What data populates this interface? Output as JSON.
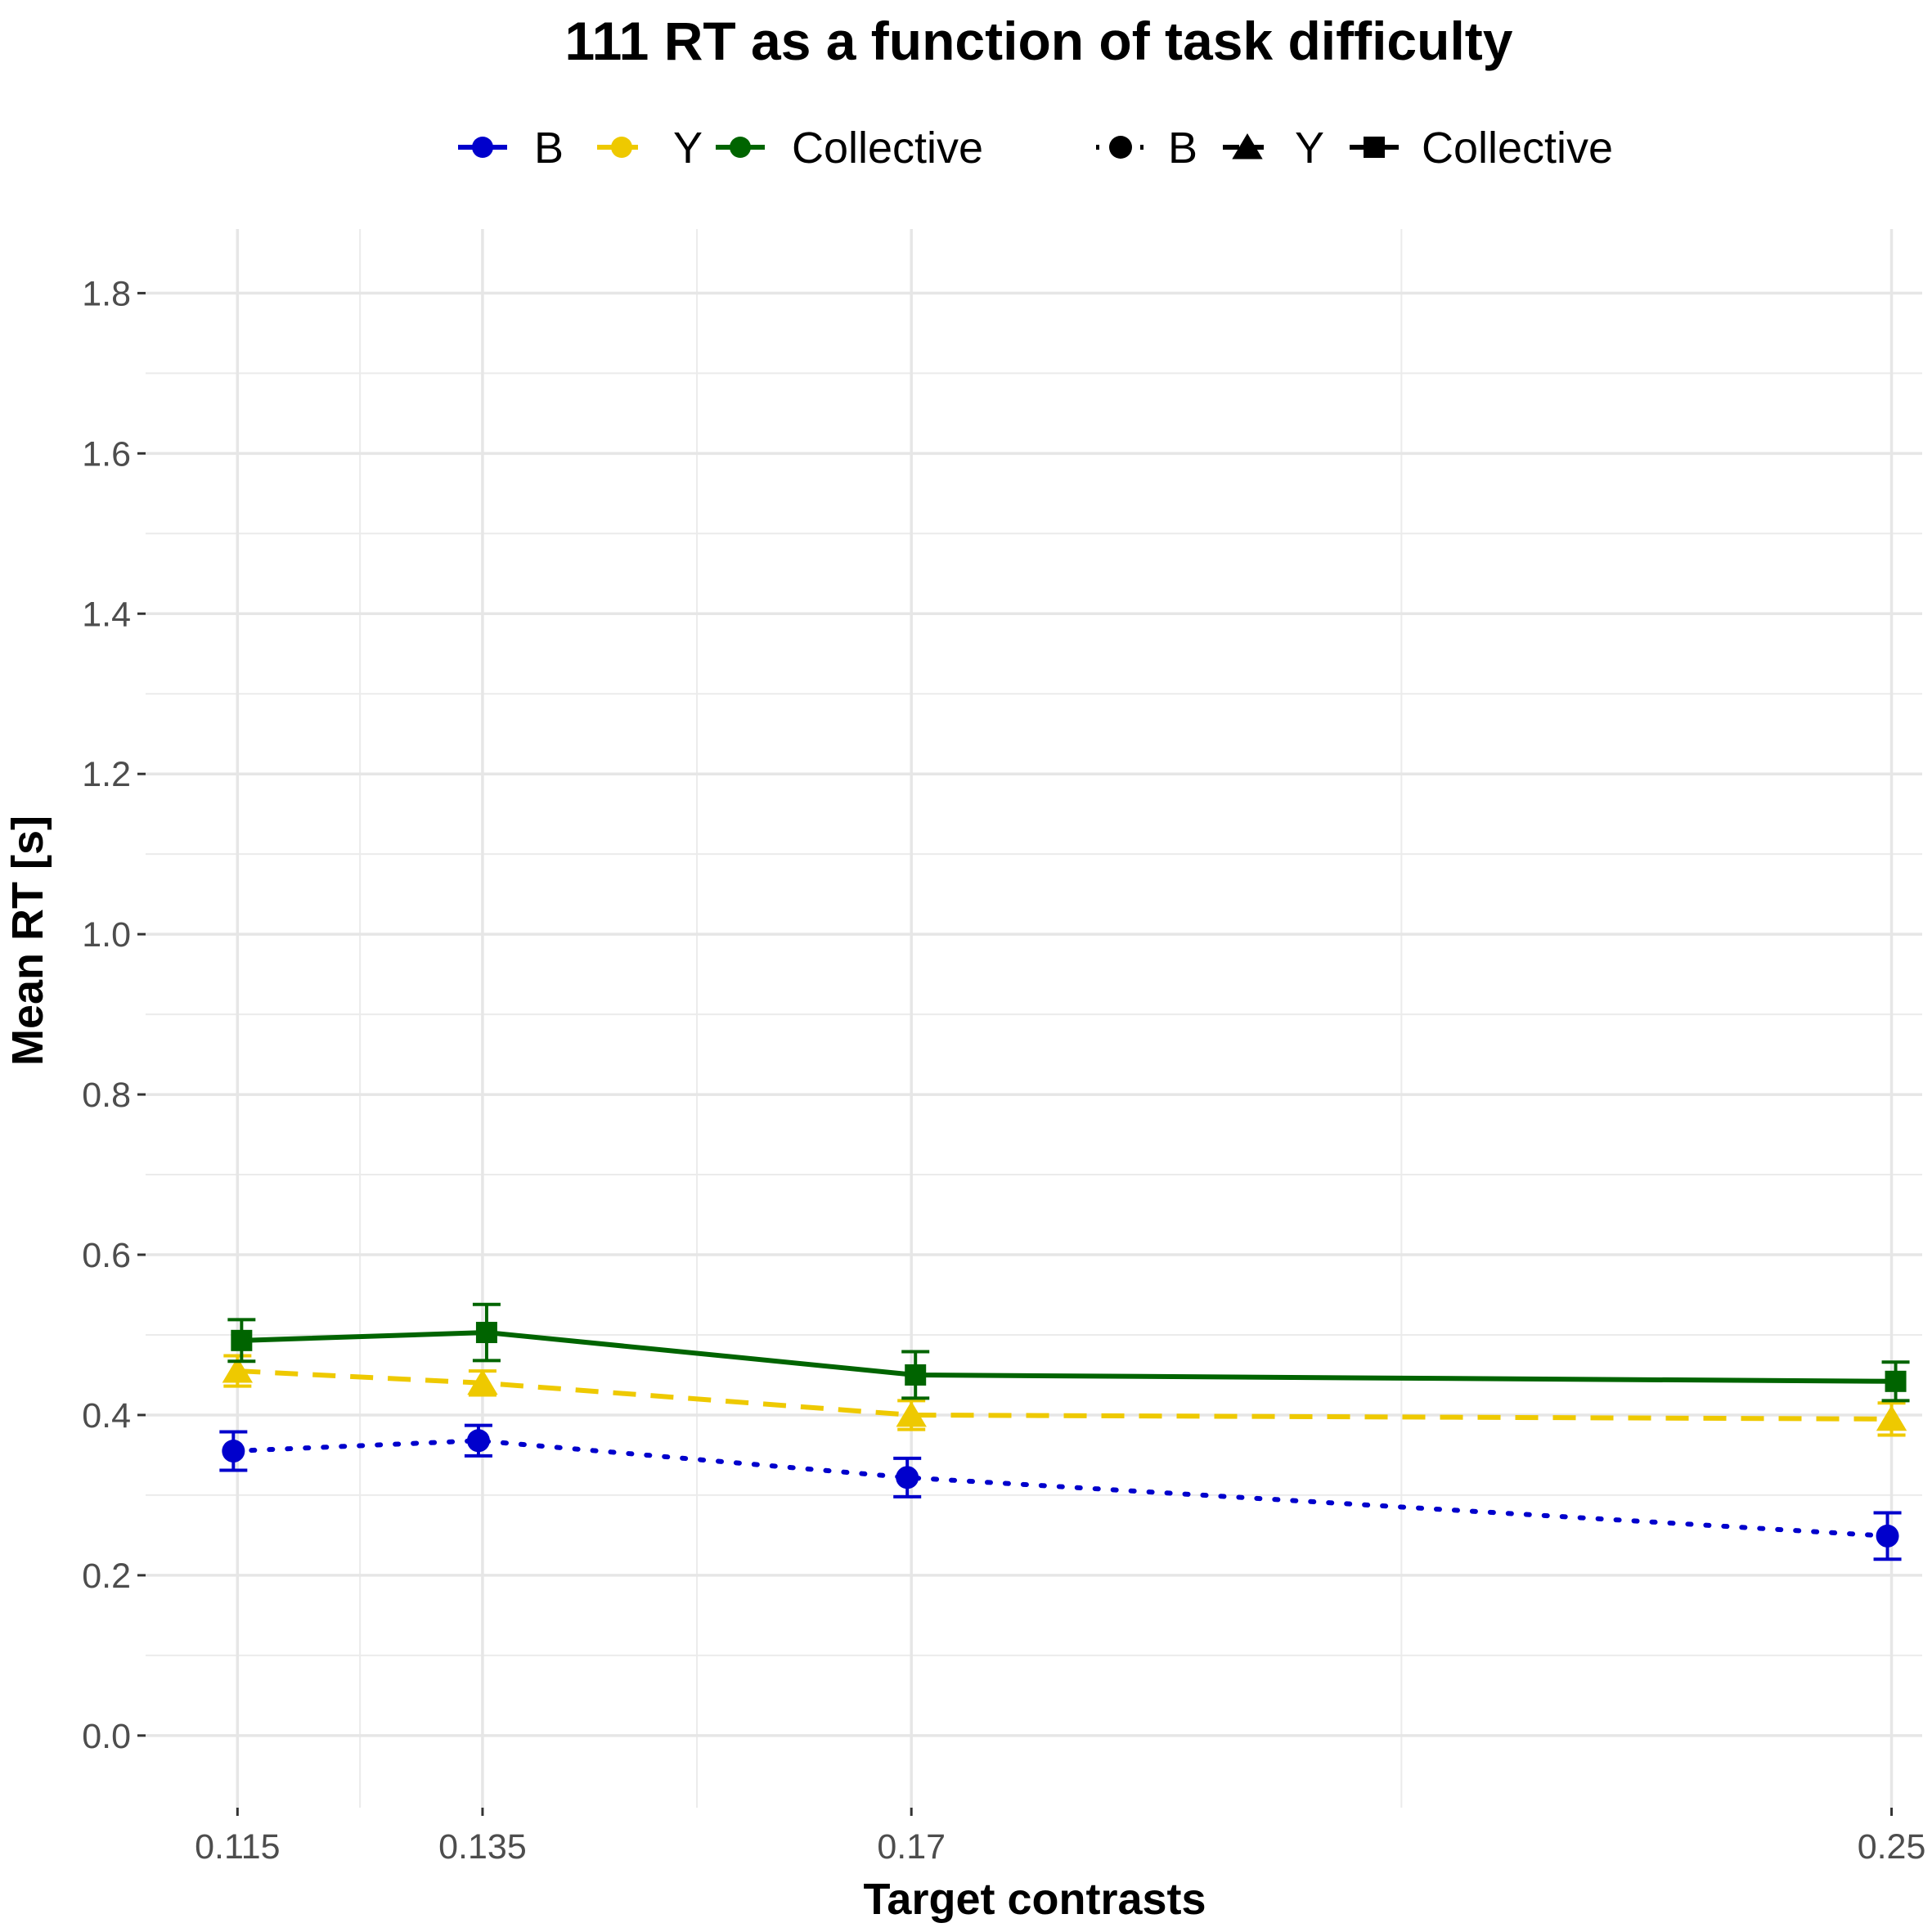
{
  "chart_data": {
    "type": "line",
    "title": "111   RT  as a function of task difficulty",
    "xlabel": "Target contrasts",
    "ylabel": "Mean  RT  [s]",
    "x": [
      0.115,
      0.135,
      0.17,
      0.25
    ],
    "x_tick_labels": [
      "0.115",
      "0.135",
      "0.17",
      "0.25"
    ],
    "y_ticks": [
      0.0,
      0.2,
      0.4,
      0.6,
      0.8,
      1.0,
      1.2,
      1.4,
      1.6,
      1.8
    ],
    "y_tick_labels": [
      "0.0",
      "0.2",
      "0.4",
      "0.6",
      "0.8",
      "1.0",
      "1.2",
      "1.4",
      "1.6",
      "1.8"
    ],
    "ylim": [
      -0.09,
      1.88
    ],
    "grid": true,
    "legend_position": "top",
    "legend_color": [
      "B",
      "Y",
      "Collective"
    ],
    "legend_shape": [
      "B",
      "Y",
      "Collective"
    ],
    "series": [
      {
        "name": "B",
        "color": "#0000cc",
        "line_style": "dotted",
        "marker": "circle",
        "values": [
          0.355,
          0.368,
          0.322,
          0.249
        ],
        "errors": [
          0.024,
          0.019,
          0.024,
          0.029
        ]
      },
      {
        "name": "Y",
        "color": "#eec900",
        "line_style": "dashed",
        "marker": "triangle",
        "values": [
          0.455,
          0.44,
          0.4,
          0.395
        ],
        "errors": [
          0.019,
          0.015,
          0.018,
          0.02
        ]
      },
      {
        "name": "Collective",
        "color": "#006400",
        "line_style": "solid",
        "marker": "square",
        "values": [
          0.493,
          0.503,
          0.45,
          0.442
        ],
        "errors": [
          0.026,
          0.035,
          0.029,
          0.024
        ]
      }
    ]
  }
}
